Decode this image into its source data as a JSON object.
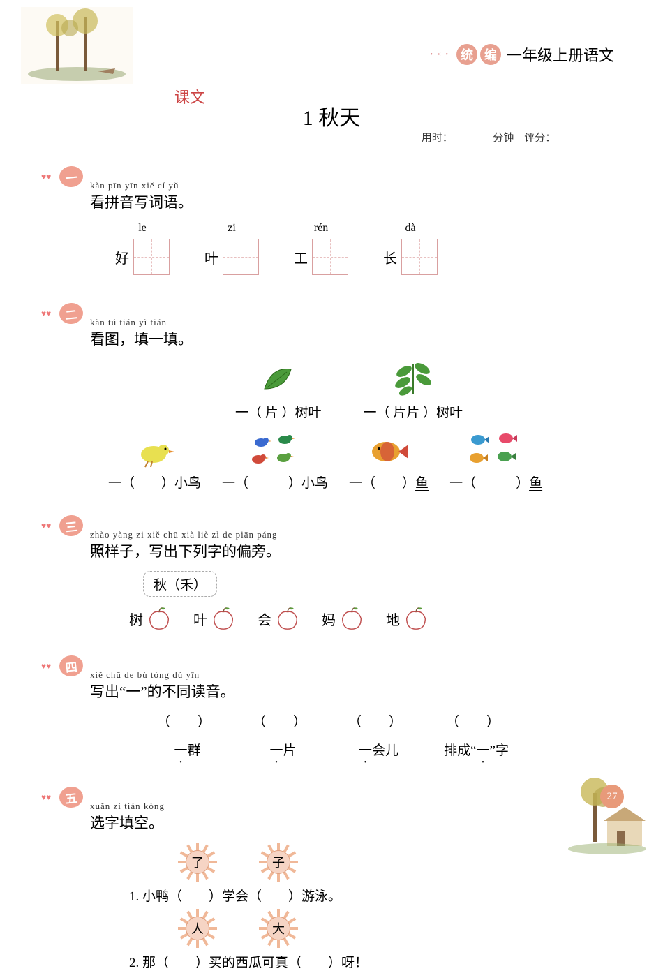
{
  "header": {
    "badge1": "统",
    "badge2": "编",
    "grade_text": "一年级上册语文",
    "kewen": "课文",
    "title": "1  秋天",
    "time_label": "用时：",
    "time_unit": "分钟",
    "score_label": "评分：",
    "page_number": "27"
  },
  "sections": [
    {
      "num": "一",
      "pinyin": "kàn pīn  yīn  xiě  cí   yǔ",
      "title": "看拼音写词语。",
      "boxes": [
        {
          "py": "le",
          "prefix": "好"
        },
        {
          "py": "zi",
          "prefix": "叶"
        },
        {
          "py": "rén",
          "prefix": "工"
        },
        {
          "py": "dà",
          "prefix": "长"
        }
      ]
    },
    {
      "num": "二",
      "pinyin": "kàn  tú          tián  yì  tián",
      "title": "看图，填一填。",
      "row1": [
        {
          "label": "一（ 片 ）树叶"
        },
        {
          "label": "一（ 片片 ）树叶"
        }
      ],
      "row2": [
        {
          "label": "一（　　）小鸟"
        },
        {
          "label": "一（　　　）小鸟"
        },
        {
          "label": "一（　　）",
          "tail": "鱼",
          "underline": true
        },
        {
          "label": "一（　　　）",
          "tail": "鱼",
          "underline": true
        }
      ]
    },
    {
      "num": "三",
      "pinyin": "zhào yàng zi        xiě  chū xià  liè   zì    de piān páng",
      "title": "照样子，写出下列字的偏旁。",
      "example": "秋（禾）",
      "apples": [
        "树",
        "叶",
        "会",
        "妈",
        "地"
      ]
    },
    {
      "num": "四",
      "pinyin": "xiě  chū               de  bù  tóng dú  yīn",
      "title": "写出“一”的不同读音。",
      "cols": [
        {
          "word": "一群",
          "dot_index": 0
        },
        {
          "word": "一片",
          "dot_index": 0
        },
        {
          "word": "一会儿",
          "dot_index": 0
        },
        {
          "word": "排成“一”字",
          "dot_index": 3
        }
      ]
    },
    {
      "num": "五",
      "pinyin": "xuǎn zì  tián kòng",
      "title": "选字填空。",
      "pair1": [
        "了",
        "子"
      ],
      "line1_a": "1. 小鸭（",
      "line1_b": "）学会（",
      "line1_c": "）游泳。",
      "pair2": [
        "人",
        "大"
      ],
      "line2_a": "2. 那（",
      "line2_b": "）买的西瓜可真（",
      "line2_c": "）呀！"
    }
  ],
  "colors": {
    "accent": "#e89a7a",
    "heart": "#f0a090",
    "red_text": "#c44"
  }
}
